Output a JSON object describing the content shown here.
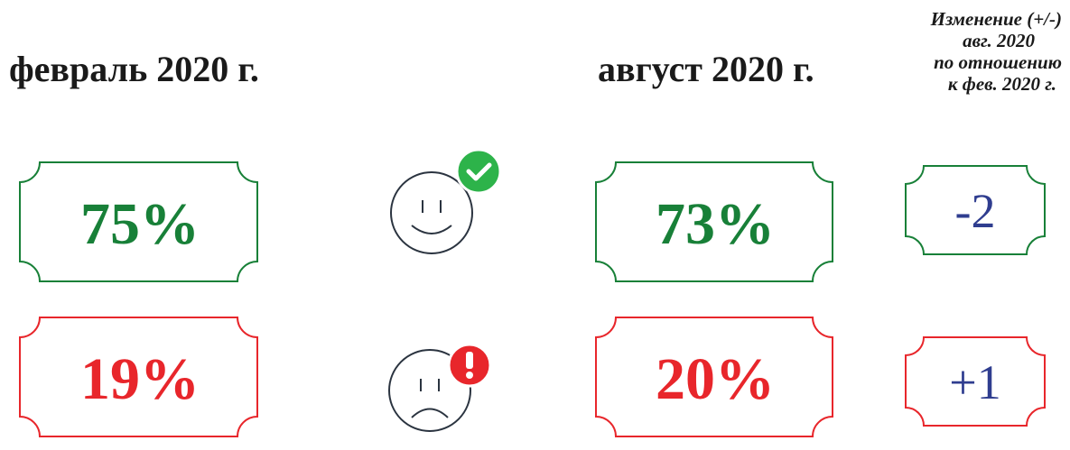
{
  "header": {
    "left": "февраль 2020 г.",
    "right": "август 2020 г.",
    "note": [
      "Изменение (+/-)",
      "авг. 2020",
      "по отношению",
      "к фев. 2020 г."
    ]
  },
  "rows": [
    {
      "feb": "75%",
      "aug": "73%",
      "change": "-2",
      "color": "#188038"
    },
    {
      "feb": "19%",
      "aug": "20%",
      "change": "+1",
      "color": "#e8262b"
    }
  ]
}
